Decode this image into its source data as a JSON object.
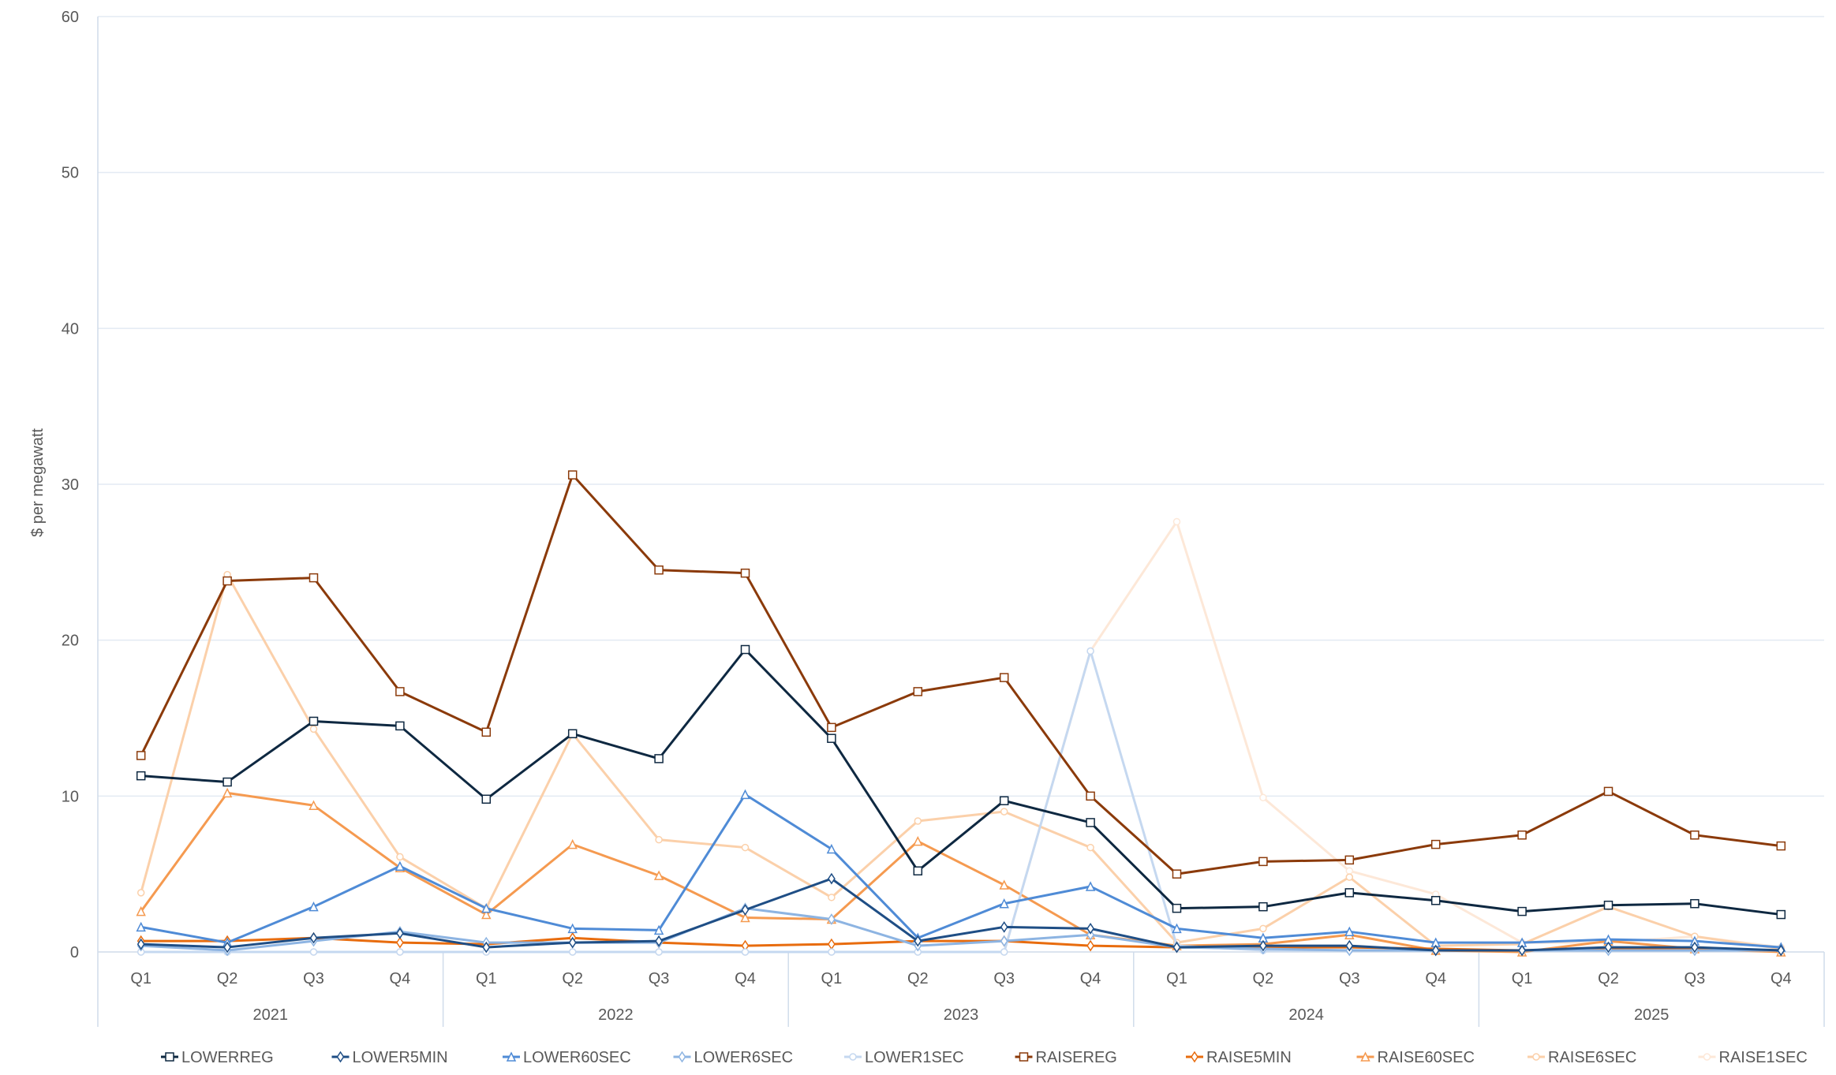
{
  "chart_data": {
    "type": "line",
    "title": "",
    "xlabel": "",
    "ylabel": "$ per megawatt",
    "ylim": [
      0,
      60
    ],
    "yticks": [
      0,
      10,
      20,
      30,
      40,
      50,
      60
    ],
    "grid": true,
    "legend_position": "bottom",
    "years": [
      "2021",
      "2022",
      "2023",
      "2024",
      "2025"
    ],
    "quarters": [
      "Q1",
      "Q2",
      "Q3",
      "Q4"
    ],
    "categories": [
      "2021 Q1",
      "2021 Q2",
      "2021 Q3",
      "2021 Q4",
      "2022 Q1",
      "2022 Q2",
      "2022 Q3",
      "2022 Q4",
      "2023 Q1",
      "2023 Q2",
      "2023 Q3",
      "2023 Q4",
      "2024 Q1",
      "2024 Q2",
      "2024 Q3",
      "2024 Q4",
      "2025 Q1",
      "2025 Q2",
      "2025 Q3",
      "2025 Q4"
    ],
    "series": [
      {
        "name": "LOWERREG",
        "color": "#0e2841",
        "marker": "square",
        "values": [
          11.3,
          10.9,
          14.8,
          14.5,
          9.8,
          14.0,
          12.4,
          19.4,
          13.7,
          5.2,
          9.7,
          8.3,
          2.8,
          2.9,
          3.8,
          3.3,
          2.6,
          3.0,
          3.1,
          2.4
        ]
      },
      {
        "name": "LOWER5MIN",
        "color": "#1f4e85",
        "marker": "diamond",
        "values": [
          0.5,
          0.3,
          0.9,
          1.2,
          0.3,
          0.6,
          0.7,
          2.7,
          4.7,
          0.7,
          1.6,
          1.5,
          0.3,
          0.4,
          0.4,
          0.1,
          0.1,
          0.3,
          0.3,
          0.1
        ]
      },
      {
        "name": "LOWER60SEC",
        "color": "#4f8bd6",
        "marker": "triangle",
        "values": [
          1.6,
          0.6,
          2.9,
          5.5,
          2.8,
          1.5,
          1.4,
          10.1,
          6.6,
          0.9,
          3.1,
          4.2,
          1.5,
          0.9,
          1.3,
          0.6,
          0.6,
          0.8,
          0.7,
          0.3
        ]
      },
      {
        "name": "LOWER6SEC",
        "color": "#8db4e2",
        "marker": "diamond",
        "values": [
          0.4,
          0.1,
          0.7,
          1.3,
          0.6,
          0.6,
          0.6,
          2.8,
          2.1,
          0.4,
          0.7,
          1.1,
          0.3,
          0.2,
          0.1,
          0.1,
          0.1,
          0.1,
          0.1,
          0.1
        ]
      },
      {
        "name": "LOWER1SEC",
        "color": "#c5d8f0",
        "marker": "circle",
        "values": [
          0,
          0,
          0,
          0,
          0,
          0,
          0,
          0,
          0,
          0,
          0,
          19.3,
          0.4,
          0.1,
          0.1,
          0.1,
          0.1,
          0.1,
          0.1,
          0.1
        ]
      },
      {
        "name": "RAISEREG",
        "color": "#8b3a0a",
        "marker": "square",
        "values": [
          12.6,
          23.8,
          24.0,
          16.7,
          14.1,
          30.6,
          24.5,
          24.3,
          14.4,
          16.7,
          17.6,
          10.0,
          5.0,
          5.8,
          5.9,
          6.9,
          7.5,
          10.3,
          7.5,
          6.8
        ]
      },
      {
        "name": "RAISE5MIN",
        "color": "#e86c0e",
        "marker": "diamond",
        "values": [
          0.7,
          0.7,
          0.9,
          0.6,
          0.5,
          0.9,
          0.6,
          0.4,
          0.5,
          0.7,
          0.7,
          0.4,
          0.3,
          0.3,
          0.3,
          0.2,
          0.1,
          0.2,
          0.2,
          0.1
        ]
      },
      {
        "name": "RAISE60SEC",
        "color": "#f59a50",
        "marker": "triangle",
        "values": [
          2.6,
          10.2,
          9.4,
          5.4,
          2.4,
          6.9,
          4.9,
          2.2,
          2.1,
          7.1,
          4.3,
          1.1,
          0.4,
          0.5,
          1.1,
          0.1,
          0.0,
          0.7,
          0.2,
          0.0
        ]
      },
      {
        "name": "RAISE6SEC",
        "color": "#fbd0aa",
        "marker": "circle",
        "values": [
          3.8,
          24.2,
          14.3,
          6.1,
          2.8,
          14.0,
          7.2,
          6.7,
          3.5,
          8.4,
          9.0,
          6.7,
          0.6,
          1.5,
          4.8,
          0.4,
          0.5,
          2.9,
          1.0,
          0.2
        ]
      },
      {
        "name": "RAISE1SEC",
        "color": "#fde8d8",
        "marker": "circle",
        "values": [
          0,
          0,
          0,
          0,
          0,
          0,
          0,
          0,
          0,
          0,
          0,
          19.3,
          27.6,
          9.9,
          5.2,
          3.7,
          0.6,
          0.6,
          1.0,
          0.3
        ]
      }
    ]
  }
}
